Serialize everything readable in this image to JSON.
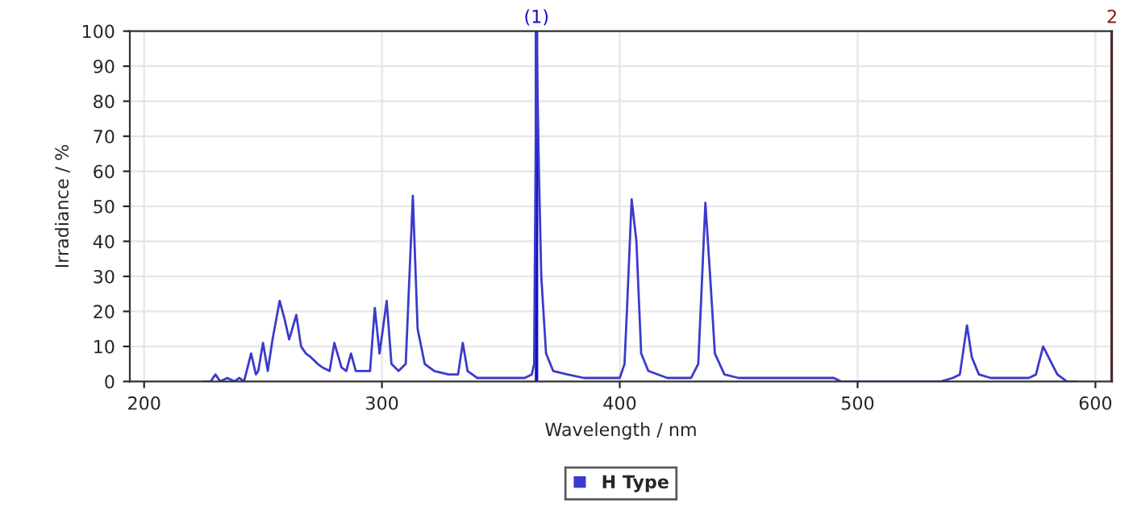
{
  "chart_data": {
    "type": "line",
    "xlabel": "Wavelength / nm",
    "ylabel": "Irradiance / %",
    "series": [
      {
        "name": "H Type",
        "color": "#3a3acc",
        "x": [
          225,
          228,
          230,
          232,
          235,
          238,
          240,
          242,
          245,
          247,
          248,
          250,
          252,
          254,
          257,
          259,
          261,
          264,
          266,
          268,
          270,
          273,
          275,
          278,
          280,
          283,
          285,
          287,
          289,
          292,
          295,
          297,
          299,
          302,
          304,
          307,
          310,
          313,
          315,
          318,
          322,
          328,
          332,
          334,
          336,
          340,
          350,
          360,
          363,
          364,
          365,
          366,
          367,
          369,
          372,
          378,
          385,
          390,
          395,
          400,
          402,
          403,
          405,
          407,
          409,
          412,
          420,
          430,
          433,
          434,
          436,
          438,
          440,
          444,
          450,
          470,
          490,
          493,
          500,
          520,
          535,
          540,
          543,
          546,
          548,
          551,
          556,
          565,
          572,
          575,
          578,
          581,
          584,
          588,
          592
        ],
        "values": [
          0,
          0,
          2,
          0,
          1,
          0,
          1,
          0,
          8,
          2,
          3,
          11,
          3,
          12,
          23,
          18,
          12,
          19,
          10,
          8,
          7,
          5,
          4,
          3,
          11,
          4,
          3,
          8,
          3,
          3,
          3,
          21,
          8,
          23,
          5,
          3,
          5,
          53,
          15,
          5,
          3,
          2,
          2,
          11,
          3,
          1,
          1,
          1,
          2,
          5,
          100,
          60,
          30,
          8,
          3,
          2,
          1,
          1,
          1,
          1,
          5,
          20,
          52,
          40,
          8,
          3,
          1,
          1,
          5,
          20,
          51,
          30,
          8,
          2,
          1,
          1,
          1,
          0,
          0,
          0,
          0,
          1,
          2,
          16,
          7,
          2,
          1,
          1,
          1,
          2,
          10,
          6,
          2,
          0,
          0
        ]
      }
    ],
    "xlim": [
      194,
      607
    ],
    "ylim": [
      0,
      100
    ],
    "xticks": [
      200,
      300,
      400,
      500,
      600
    ],
    "yticks": [
      0,
      10,
      20,
      30,
      40,
      50,
      60,
      70,
      80,
      90,
      100
    ],
    "ref_lines": [
      {
        "axis": "x",
        "value": 365,
        "color": "#1010c8"
      },
      {
        "axis": "x",
        "value": 607,
        "color": "#8b1a1a"
      }
    ],
    "annotations": [
      {
        "text": "(1)",
        "x": 365,
        "y": 100
      },
      {
        "text": "2",
        "x": 607,
        "y": 100
      }
    ],
    "grid": true,
    "legend": "bottom",
    "line_style": "solid",
    "marker": "none"
  }
}
